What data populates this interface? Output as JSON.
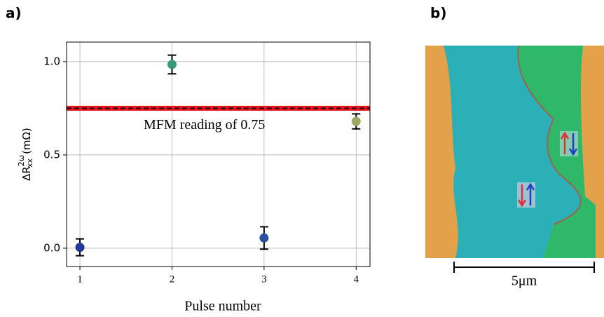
{
  "chart_data": {
    "type": "scatter",
    "x": [
      1,
      2,
      3,
      4
    ],
    "values": [
      0.005,
      0.985,
      0.055,
      0.68
    ],
    "errors": [
      0.045,
      0.05,
      0.06,
      0.04
    ],
    "colors": [
      "#23389a",
      "#3a9a78",
      "#2b4fa3",
      "#9aa860"
    ],
    "xlim": [
      0.855,
      4.15
    ],
    "ylim": [
      -0.098,
      1.105
    ],
    "xticks": [
      1,
      2,
      3,
      4
    ],
    "yticks": [
      {
        "value": 0,
        "label": "0.0"
      },
      0.5,
      {
        "value": 1,
        "label": "1.0"
      }
    ],
    "grid": true,
    "x_label": "Pulse number",
    "y_label": {
      "base": "ΔR",
      "sup": "2ω",
      "sub": "xx",
      "unit": "(mΩ)"
    },
    "hline": 0.75,
    "annotation": "MFM reading of 0.75"
  },
  "panels": [
    "a)",
    "b)"
  ],
  "scale_bar": "5μm"
}
